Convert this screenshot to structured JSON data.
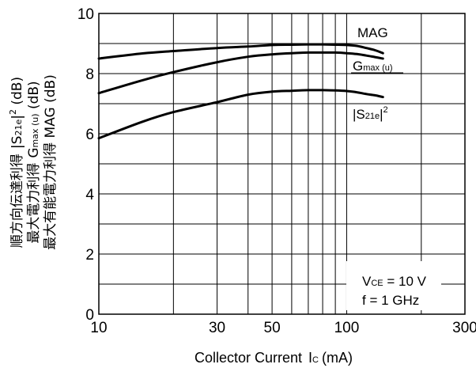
{
  "chart_data": {
    "type": "line",
    "xscale": "log",
    "xlim": [
      10,
      300
    ],
    "ylim": [
      0,
      10
    ],
    "x_ticks": [
      "10",
      "30",
      "50",
      "100",
      "300"
    ],
    "y_ticks": [
      "0",
      "2",
      "4",
      "6",
      "8",
      "10"
    ],
    "grid": true,
    "xlabel": {
      "main": "Collector Current",
      "sym": "I",
      "sub": "C",
      "unit": "(mA)"
    },
    "ylabel": {
      "line1": {
        "pre": "順方向伝達利得",
        "mid": "|S",
        "sub": "21e",
        "post": "|",
        "sup": "2",
        "unit": " (dB)"
      },
      "line2": {
        "pre": "最大電力利得",
        "mid": "G",
        "sub": "max (u)",
        "unit": " (dB)"
      },
      "line3": {
        "text": "最大有能電力利得 MAG (dB)"
      }
    },
    "series": [
      {
        "name": "MAG",
        "x": [
          10,
          15,
          20,
          30,
          40,
          50,
          60,
          70,
          80,
          90,
          100,
          110,
          120,
          130,
          140
        ],
        "y": [
          8.5,
          8.67,
          8.75,
          8.85,
          8.9,
          8.95,
          8.96,
          8.97,
          8.97,
          8.96,
          8.95,
          8.92,
          8.85,
          8.78,
          8.68
        ]
      },
      {
        "name": "Gmax (u)",
        "label": {
          "main": "G",
          "sub": "max (u)"
        },
        "x": [
          10,
          15,
          20,
          30,
          40,
          50,
          60,
          70,
          80,
          90,
          100,
          110,
          120,
          130,
          140
        ],
        "y": [
          7.35,
          7.78,
          8.05,
          8.38,
          8.56,
          8.64,
          8.68,
          8.7,
          8.7,
          8.7,
          8.68,
          8.65,
          8.6,
          8.55,
          8.5
        ]
      },
      {
        "name": "|S21e|2",
        "label": {
          "pre": "|S",
          "sub": "21e",
          "post": "|",
          "sup": "2"
        },
        "x": [
          10,
          15,
          20,
          30,
          40,
          50,
          60,
          70,
          80,
          90,
          100,
          110,
          120,
          130,
          140
        ],
        "y": [
          5.85,
          6.4,
          6.72,
          7.05,
          7.3,
          7.4,
          7.43,
          7.45,
          7.45,
          7.44,
          7.42,
          7.38,
          7.32,
          7.28,
          7.22
        ]
      }
    ],
    "conditions": {
      "vce": {
        "sym": "V",
        "sub": "CE",
        "rest": " = 10 V"
      },
      "freq": "f = 1 GHz"
    }
  }
}
